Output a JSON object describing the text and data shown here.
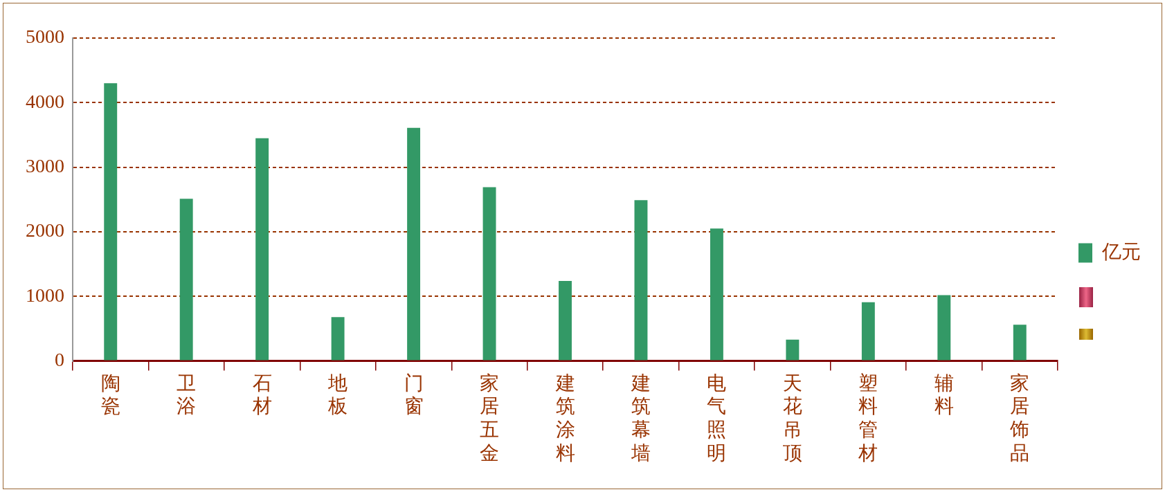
{
  "chart_data": {
    "type": "bar",
    "categories": [
      "陶瓷",
      "卫浴",
      "石材",
      "地板",
      "门窗",
      "家居五金",
      "建筑涂料",
      "建筑幕墙",
      "电气照明",
      "天花吊顶",
      "塑料管材",
      "辅料",
      "家居饰品"
    ],
    "series": [
      {
        "name": "亿元",
        "color": "#339966",
        "values": [
          4300,
          2510,
          3450,
          680,
          3610,
          2690,
          1240,
          2490,
          2050,
          330,
          910,
          1020,
          560
        ]
      }
    ],
    "ylim": [
      0,
      5000
    ],
    "yticks": [
      0,
      1000,
      2000,
      3000,
      4000,
      5000
    ],
    "grid": "y",
    "legend": "right"
  }
}
